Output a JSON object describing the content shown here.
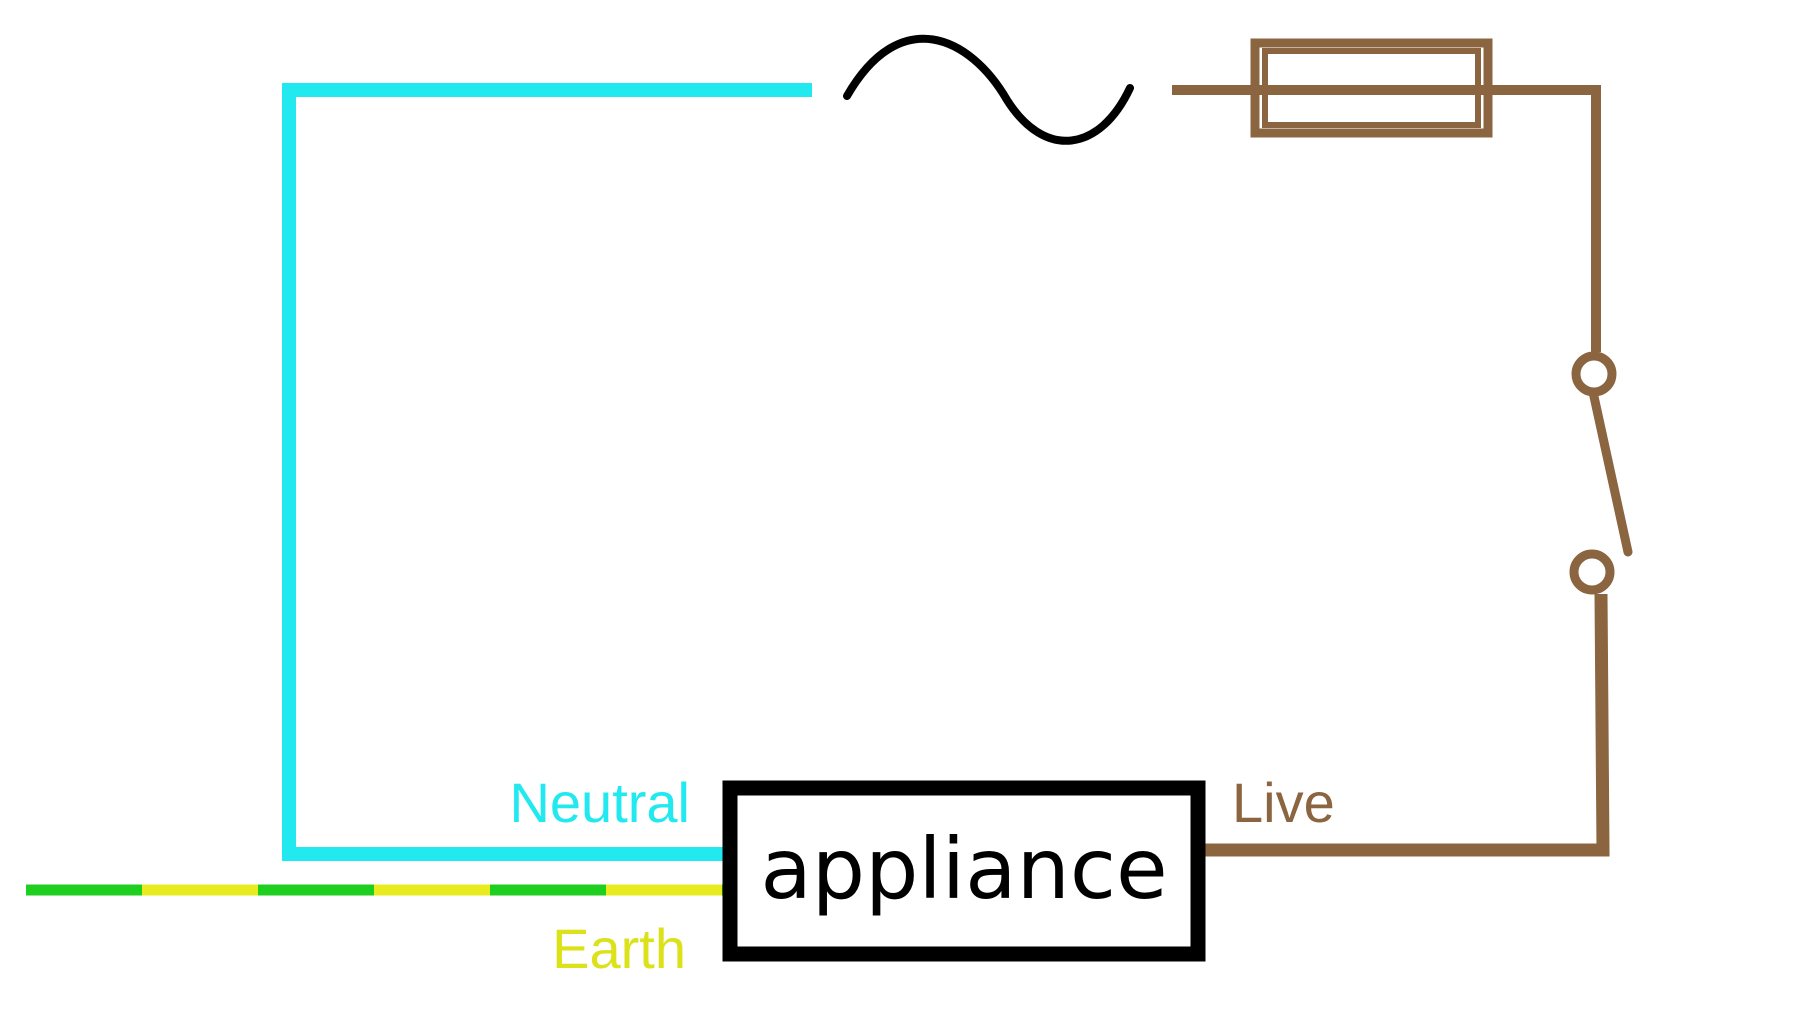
{
  "labels": {
    "neutral": "Neutral",
    "live": "Live",
    "earth": "Earth",
    "appliance": "appliance"
  },
  "colors": {
    "neutral": "#22e9f0",
    "live": "#8b6440",
    "earth_green": "#1fcf1f",
    "earth_yellow": "#e8ec1e",
    "earth_label": "#dce21a",
    "ac_source": "#000000",
    "appliance_border": "#000000"
  },
  "icons": {
    "source": "ac-source-icon",
    "fuse": "fuse-icon",
    "switch": "switch-icon"
  }
}
